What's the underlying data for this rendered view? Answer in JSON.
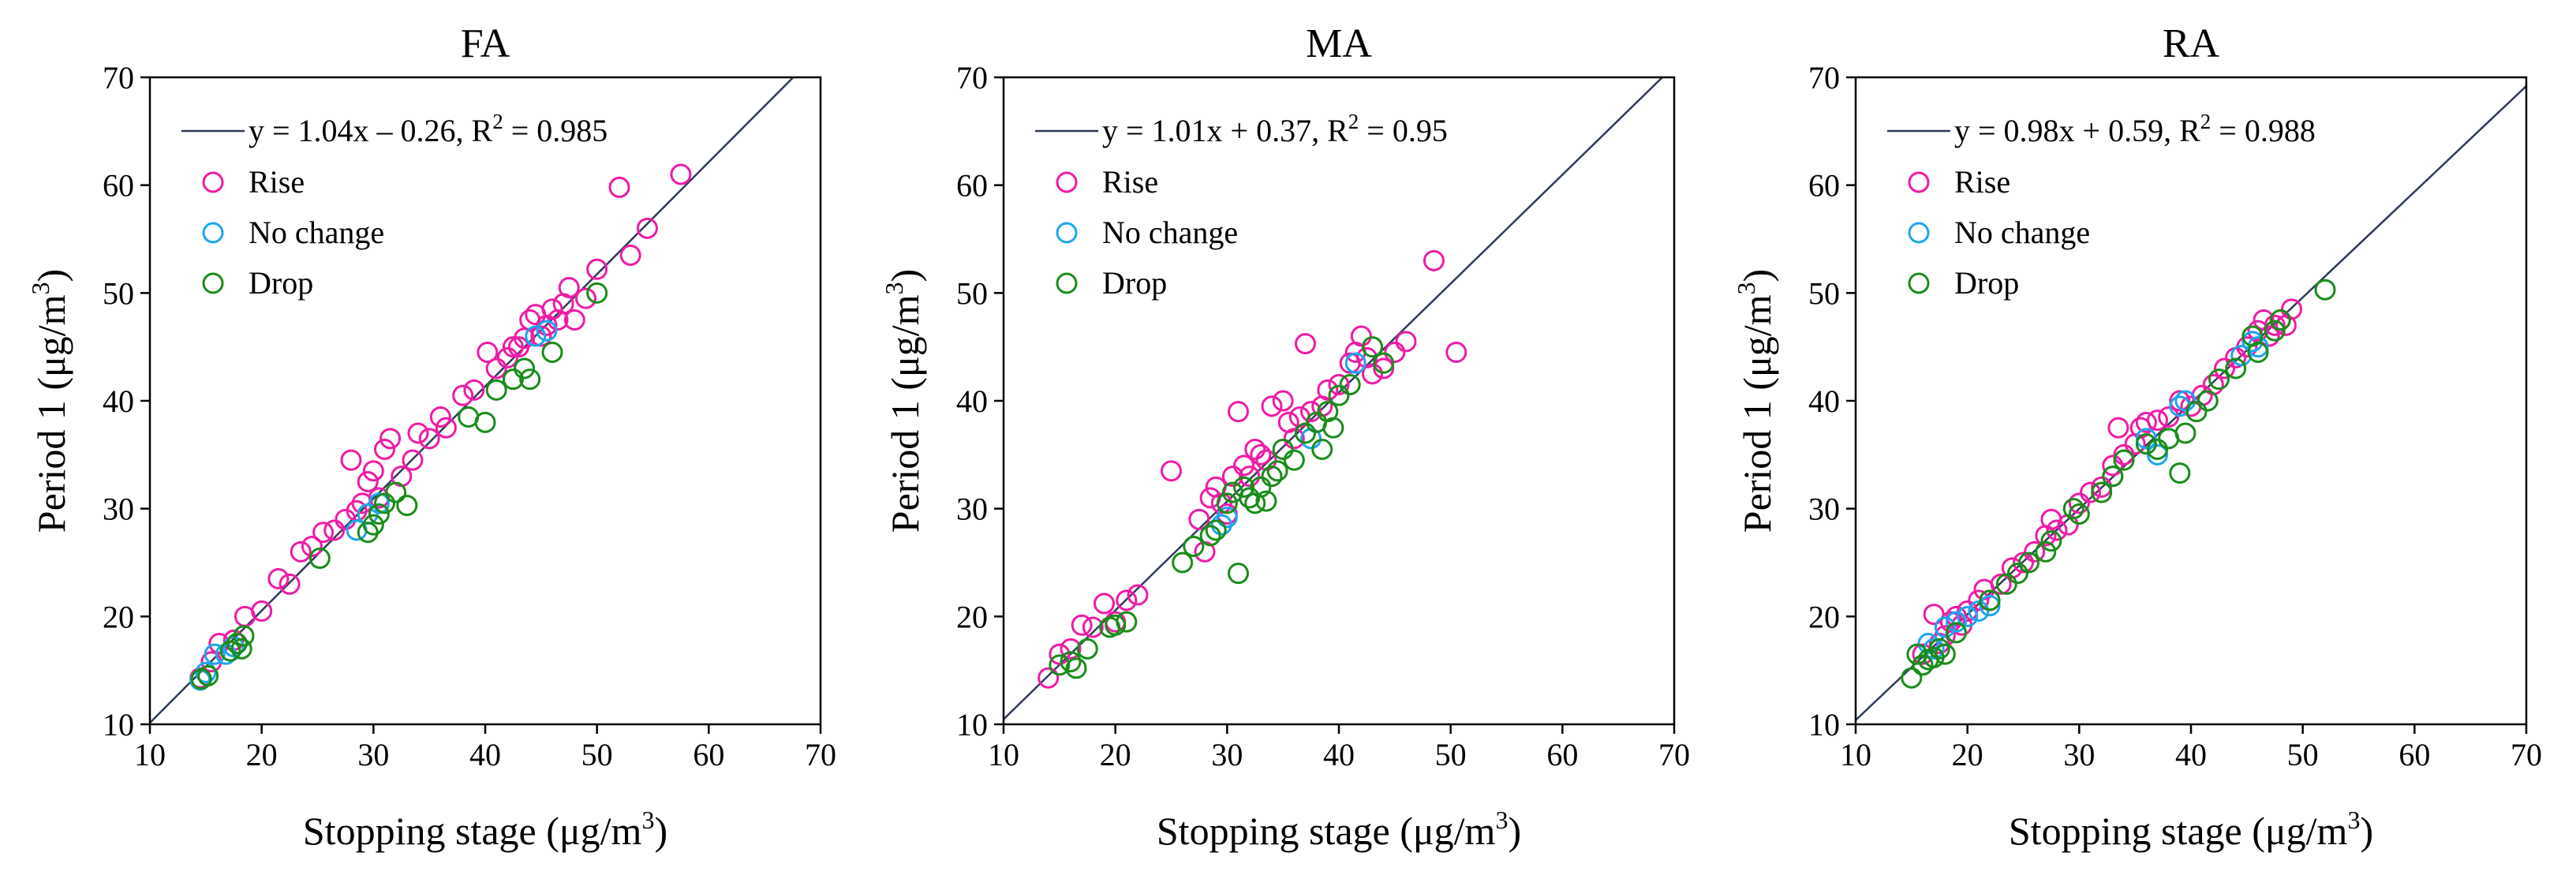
{
  "colors": {
    "Rise": "#ee1ca6",
    "No change": "#1ca6ee",
    "Drop": "#1a8c1a",
    "fit_line": "#2f3b5c"
  },
  "chart_data": [
    {
      "type": "scatter",
      "title": "FA",
      "xlabel": "Stopping stage (μg/m",
      "xlabel_sup": "3",
      "xlabel_end": ")",
      "ylabel": "Period 1 (μg/m",
      "ylabel_sup": "3",
      "ylabel_end": ")",
      "xlim": [
        10,
        70
      ],
      "ylim": [
        10,
        70
      ],
      "xticks": [
        10,
        20,
        30,
        40,
        50,
        60,
        70
      ],
      "yticks": [
        10,
        20,
        30,
        40,
        50,
        60,
        70
      ],
      "legend_position": "top-left",
      "fit": {
        "slope": 1.04,
        "intercept": -0.26,
        "label_main": "y = 1.04x – 0.26, R",
        "label_sup": "2",
        "label_end": " = 0.985"
      },
      "series": [
        {
          "name": "Rise",
          "points": [
            [
              14.5,
              14.3
            ],
            [
              15.5,
              15.8
            ],
            [
              16.2,
              17.5
            ],
            [
              17.5,
              17.8
            ],
            [
              18.5,
              20
            ],
            [
              20,
              20.5
            ],
            [
              21.5,
              23.5
            ],
            [
              22.5,
              23
            ],
            [
              23.5,
              26
            ],
            [
              24.5,
              26.5
            ],
            [
              25.5,
              27.8
            ],
            [
              26.5,
              28
            ],
            [
              27.5,
              29
            ],
            [
              28,
              34.5
            ],
            [
              28.5,
              29.8
            ],
            [
              29,
              30.5
            ],
            [
              29.5,
              32.5
            ],
            [
              30,
              33.5
            ],
            [
              30.5,
              31
            ],
            [
              31,
              35.5
            ],
            [
              31.5,
              36.5
            ],
            [
              32.5,
              33
            ],
            [
              33.5,
              34.5
            ],
            [
              34,
              37
            ],
            [
              35,
              36.5
            ],
            [
              36,
              38.5
            ],
            [
              36.5,
              37.5
            ],
            [
              38,
              40.5
            ],
            [
              39,
              41
            ],
            [
              40.2,
              44.5
            ],
            [
              41,
              43
            ],
            [
              42,
              44
            ],
            [
              42.5,
              45
            ],
            [
              43,
              45
            ],
            [
              43.5,
              45.8
            ],
            [
              44,
              47.5
            ],
            [
              44.5,
              48
            ],
            [
              45,
              46
            ],
            [
              45.5,
              47
            ],
            [
              46,
              48.5
            ],
            [
              46.5,
              47.5
            ],
            [
              47,
              49
            ],
            [
              47.5,
              50.5
            ],
            [
              48,
              47.5
            ],
            [
              49,
              49.5
            ],
            [
              50,
              52.2
            ],
            [
              52,
              59.8
            ],
            [
              53,
              53.5
            ],
            [
              54.5,
              56
            ],
            [
              57.5,
              61
            ]
          ]
        },
        {
          "name": "No change",
          "points": [
            [
              14.5,
              14.1
            ],
            [
              15,
              14.8
            ],
            [
              15.8,
              16.5
            ],
            [
              16.8,
              16.5
            ],
            [
              17.5,
              17.2
            ],
            [
              28.5,
              28
            ],
            [
              29.5,
              29.5
            ],
            [
              30.5,
              30.5
            ],
            [
              44.5,
              46
            ],
            [
              45.5,
              46.5
            ]
          ]
        },
        {
          "name": "Drop",
          "points": [
            [
              14.6,
              14.2
            ],
            [
              15.2,
              14.5
            ],
            [
              17.2,
              16.8
            ],
            [
              17.8,
              17.5
            ],
            [
              18.2,
              17
            ],
            [
              18.4,
              18.2
            ],
            [
              25.2,
              25.4
            ],
            [
              29.5,
              27.8
            ],
            [
              30,
              28.5
            ],
            [
              30.5,
              29.5
            ],
            [
              31,
              30.5
            ],
            [
              32,
              31.5
            ],
            [
              33,
              30.3
            ],
            [
              38.5,
              38.5
            ],
            [
              40,
              38
            ],
            [
              41,
              41
            ],
            [
              42.5,
              42
            ],
            [
              43.5,
              43
            ],
            [
              44,
              42
            ],
            [
              46,
              44.5
            ],
            [
              50,
              50
            ]
          ]
        }
      ]
    },
    {
      "type": "scatter",
      "title": "MA",
      "xlabel": "Stopping stage (μg/m",
      "xlabel_sup": "3",
      "xlabel_end": ")",
      "ylabel": "Period 1 (μg/m",
      "ylabel_sup": "3",
      "ylabel_end": ")",
      "xlim": [
        10,
        70
      ],
      "ylim": [
        10,
        70
      ],
      "xticks": [
        10,
        20,
        30,
        40,
        50,
        60,
        70
      ],
      "yticks": [
        10,
        20,
        30,
        40,
        50,
        60,
        70
      ],
      "legend_position": "top-left",
      "fit": {
        "slope": 1.01,
        "intercept": 0.37,
        "label_main": "y = 1.01x + 0.37, R",
        "label_sup": "2",
        "label_end": " = 0.95"
      },
      "series": [
        {
          "name": "Rise",
          "points": [
            [
              14,
              14.3
            ],
            [
              15,
              16.5
            ],
            [
              16,
              17
            ],
            [
              17,
              19.2
            ],
            [
              18,
              19
            ],
            [
              19,
              21.2
            ],
            [
              20,
              19.5
            ],
            [
              21,
              21.5
            ],
            [
              22,
              22
            ],
            [
              25,
              33.5
            ],
            [
              27.5,
              29
            ],
            [
              28,
              26
            ],
            [
              28.5,
              31
            ],
            [
              29,
              32
            ],
            [
              29.5,
              30.5
            ],
            [
              30,
              29.5
            ],
            [
              30.5,
              33
            ],
            [
              31,
              39
            ],
            [
              31.5,
              34
            ],
            [
              32,
              33
            ],
            [
              32.5,
              35.5
            ],
            [
              33,
              35
            ],
            [
              33.5,
              34.5
            ],
            [
              34,
              39.5
            ],
            [
              35,
              40
            ],
            [
              35.5,
              38
            ],
            [
              36,
              36.5
            ],
            [
              36.5,
              38.5
            ],
            [
              37,
              45.3
            ],
            [
              37.5,
              39
            ],
            [
              38.5,
              39.5
            ],
            [
              39,
              41
            ],
            [
              40,
              41.5
            ],
            [
              41,
              43.5
            ],
            [
              41.5,
              44.5
            ],
            [
              42,
              46
            ],
            [
              42.5,
              44
            ],
            [
              43,
              42.5
            ],
            [
              44,
              43
            ],
            [
              45,
              44.5
            ],
            [
              46,
              45.5
            ],
            [
              48.5,
              53
            ],
            [
              50.5,
              44.5
            ]
          ]
        },
        {
          "name": "No change",
          "points": [
            [
              29.5,
              28.5
            ],
            [
              30,
              29.2
            ],
            [
              37.5,
              36.5
            ],
            [
              41.5,
              43.5
            ]
          ]
        },
        {
          "name": "Drop",
          "points": [
            [
              15,
              15.5
            ],
            [
              16,
              15.8
            ],
            [
              16.5,
              15.2
            ],
            [
              17.5,
              17
            ],
            [
              19.5,
              19
            ],
            [
              20,
              19.2
            ],
            [
              21,
              19.5
            ],
            [
              26,
              25
            ],
            [
              27,
              26.5
            ],
            [
              28.5,
              27.5
            ],
            [
              29,
              28
            ],
            [
              30,
              30.5
            ],
            [
              30.5,
              31.5
            ],
            [
              31,
              24
            ],
            [
              31.5,
              32
            ],
            [
              32,
              31
            ],
            [
              32.5,
              30.5
            ],
            [
              33,
              32
            ],
            [
              33.5,
              30.7
            ],
            [
              34,
              33
            ],
            [
              34.5,
              33.5
            ],
            [
              35,
              35.5
            ],
            [
              36,
              34.5
            ],
            [
              37,
              37
            ],
            [
              38,
              38
            ],
            [
              38.5,
              35.5
            ],
            [
              39,
              39
            ],
            [
              39.5,
              37.5
            ],
            [
              40,
              40.5
            ],
            [
              41,
              41.5
            ],
            [
              43,
              45
            ],
            [
              44,
              43.5
            ]
          ]
        }
      ]
    },
    {
      "type": "scatter",
      "title": "RA",
      "xlabel": "Stopping stage (μg/m",
      "xlabel_sup": "3",
      "xlabel_end": ")",
      "ylabel": "Period 1 (μg/m",
      "ylabel_sup": "3",
      "ylabel_end": ")",
      "xlim": [
        10,
        70
      ],
      "ylim": [
        10,
        70
      ],
      "xticks": [
        10,
        20,
        30,
        40,
        50,
        60,
        70
      ],
      "yticks": [
        10,
        20,
        30,
        40,
        50,
        60,
        70
      ],
      "legend_position": "top-left",
      "fit": {
        "slope": 0.98,
        "intercept": 0.59,
        "label_main": "y = 0.98x + 0.59, R",
        "label_sup": "2",
        "label_end": " = 0.988"
      },
      "series": [
        {
          "name": "Rise",
          "points": [
            [
              16,
              16.5
            ],
            [
              17,
              20.2
            ],
            [
              17.5,
              17.5
            ],
            [
              18,
              18.2
            ],
            [
              18.5,
              19.5
            ],
            [
              19,
              20
            ],
            [
              19.5,
              19.2
            ],
            [
              20,
              20.5
            ],
            [
              21,
              21.5
            ],
            [
              21.5,
              22.5
            ],
            [
              22,
              21.5
            ],
            [
              23,
              23
            ],
            [
              24,
              24.5
            ],
            [
              25,
              25
            ],
            [
              26,
              26
            ],
            [
              27,
              27.5
            ],
            [
              27.5,
              29
            ],
            [
              28,
              28
            ],
            [
              29,
              28.5
            ],
            [
              30,
              30.5
            ],
            [
              31,
              31.5
            ],
            [
              32,
              32
            ],
            [
              33,
              34
            ],
            [
              33.5,
              37.5
            ],
            [
              34,
              35
            ],
            [
              35,
              36
            ],
            [
              35.5,
              37.5
            ],
            [
              36,
              38
            ],
            [
              37,
              38.2
            ],
            [
              38,
              38.5
            ],
            [
              39,
              40
            ],
            [
              40,
              39.5
            ],
            [
              41,
              40.5
            ],
            [
              42,
              41.5
            ],
            [
              43,
              43
            ],
            [
              44,
              44
            ],
            [
              45,
              45
            ],
            [
              46,
              46.5
            ],
            [
              46.5,
              47.5
            ],
            [
              47,
              46
            ],
            [
              47.5,
              47
            ],
            [
              48,
              47.5
            ],
            [
              48.5,
              47
            ],
            [
              49,
              48.5
            ]
          ]
        },
        {
          "name": "No change",
          "points": [
            [
              16.5,
              17.5
            ],
            [
              17,
              17
            ],
            [
              18,
              19
            ],
            [
              19,
              19.5
            ],
            [
              20,
              20
            ],
            [
              21,
              20.5
            ],
            [
              22,
              21
            ],
            [
              33,
              33
            ],
            [
              36,
              36.5
            ],
            [
              37,
              35
            ],
            [
              39,
              39.5
            ],
            [
              39.5,
              40
            ],
            [
              44.5,
              44.2
            ],
            [
              45.5,
              45.5
            ],
            [
              46,
              45
            ]
          ]
        },
        {
          "name": "Drop",
          "points": [
            [
              15,
              14.3
            ],
            [
              15.5,
              16.5
            ],
            [
              16,
              15.5
            ],
            [
              16.5,
              16
            ],
            [
              17,
              16.2
            ],
            [
              17.5,
              17
            ],
            [
              18,
              16.5
            ],
            [
              19,
              18.5
            ],
            [
              22,
              21.5
            ],
            [
              23.5,
              23
            ],
            [
              24.5,
              24
            ],
            [
              25.5,
              25
            ],
            [
              27,
              26
            ],
            [
              27.5,
              27
            ],
            [
              29.5,
              30
            ],
            [
              30,
              29.5
            ],
            [
              32,
              31.5
            ],
            [
              33,
              33
            ],
            [
              34,
              34.5
            ],
            [
              36,
              36
            ],
            [
              37,
              35.5
            ],
            [
              38,
              36.5
            ],
            [
              39,
              33.3
            ],
            [
              39.5,
              37
            ],
            [
              40.5,
              39
            ],
            [
              41.5,
              40
            ],
            [
              42.5,
              42
            ],
            [
              44,
              43
            ],
            [
              45.5,
              46
            ],
            [
              46,
              44.5
            ],
            [
              47.5,
              46.5
            ],
            [
              48,
              47.5
            ],
            [
              52,
              50.3
            ]
          ]
        }
      ]
    }
  ]
}
